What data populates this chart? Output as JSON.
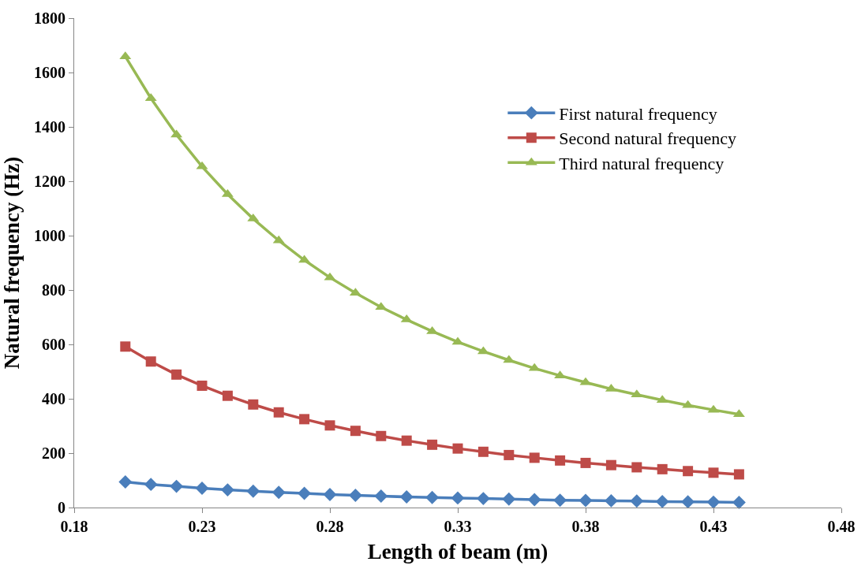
{
  "chart_data": {
    "type": "line",
    "xlabel": "Length of beam (m)",
    "ylabel": "Natural frequency (Hz)",
    "x": [
      0.2,
      0.21,
      0.22,
      0.23,
      0.24,
      0.25,
      0.26,
      0.27,
      0.28,
      0.29,
      0.3,
      0.31,
      0.32,
      0.33,
      0.34,
      0.35,
      0.36,
      0.37,
      0.38,
      0.39,
      0.4,
      0.41,
      0.42,
      0.43,
      0.44
    ],
    "series": [
      {
        "name": "First natural frequency",
        "color": "#4a7ebb",
        "marker": "diamond",
        "values": [
          94,
          85,
          78,
          71,
          65,
          60,
          56,
          52,
          48,
          45,
          42,
          39,
          37,
          35,
          33,
          31,
          29,
          27,
          26,
          25,
          24,
          22,
          21,
          20,
          19
        ]
      },
      {
        "name": "Second natural frequency",
        "color": "#be4b48",
        "marker": "square",
        "values": [
          592,
          537,
          489,
          448,
          411,
          379,
          350,
          325,
          302,
          282,
          263,
          246,
          231,
          217,
          205,
          193,
          183,
          173,
          164,
          156,
          148,
          141,
          134,
          128,
          122
        ]
      },
      {
        "name": "Third natural frequency",
        "color": "#98b954",
        "marker": "triangle",
        "values": [
          1659,
          1505,
          1371,
          1254,
          1152,
          1062,
          982,
          910,
          846,
          789,
          737,
          691,
          648,
          609,
          574,
          542,
          512,
          485,
          460,
          436,
          415,
          395,
          376,
          359,
          343
        ]
      }
    ],
    "xlim": [
      0.18,
      0.48
    ],
    "xticks": [
      {
        "value": 0.18,
        "label": "0.18"
      },
      {
        "value": 0.23,
        "label": "0.23"
      },
      {
        "value": 0.28,
        "label": "0.28"
      },
      {
        "value": 0.33,
        "label": "0.33"
      },
      {
        "value": 0.38,
        "label": "0.38"
      },
      {
        "value": 0.43,
        "label": "0.43"
      },
      {
        "value": 0.48,
        "label": "0.48"
      }
    ],
    "ylim": [
      0,
      1800
    ],
    "yticks": [
      0,
      200,
      400,
      600,
      800,
      1000,
      1200,
      1400,
      1600,
      1800
    ],
    "legend": "right",
    "line_style": "solid"
  }
}
